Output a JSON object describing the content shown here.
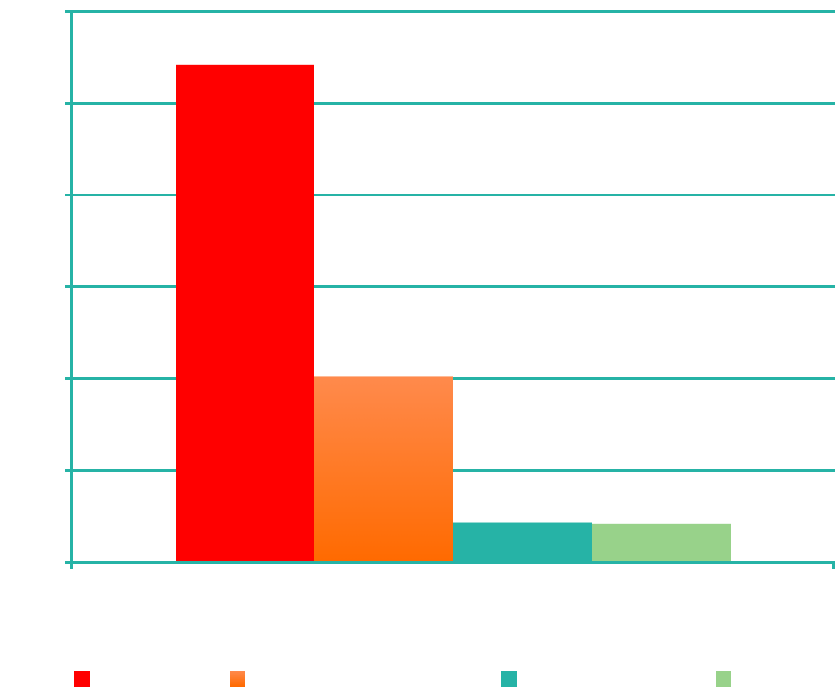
{
  "chart_data": {
    "type": "bar",
    "categories": [
      ""
    ],
    "series": [
      {
        "values": [
          5.42
        ],
        "color": "#ff0000"
      },
      {
        "values": [
          2.02
        ],
        "color": "#ff7a1f"
      },
      {
        "values": [
          0.43
        ],
        "color": "#26b3a6"
      },
      {
        "values": [
          0.42
        ],
        "color": "#98d28a"
      }
    ],
    "ylim": [
      0,
      6
    ],
    "yticks": [
      0,
      1,
      2,
      3,
      4,
      5,
      6
    ],
    "grid": true,
    "grid_color": "#26b3a6",
    "axis_color": "#26b3a6",
    "legend": {
      "placement": "bottom",
      "entries": [
        {
          "label": "",
          "color": "#ff0000"
        },
        {
          "label": "",
          "color": "#ff7a1f"
        },
        {
          "label": "",
          "color": "#26b3a6"
        },
        {
          "label": "",
          "color": "#98d28a"
        }
      ]
    }
  }
}
